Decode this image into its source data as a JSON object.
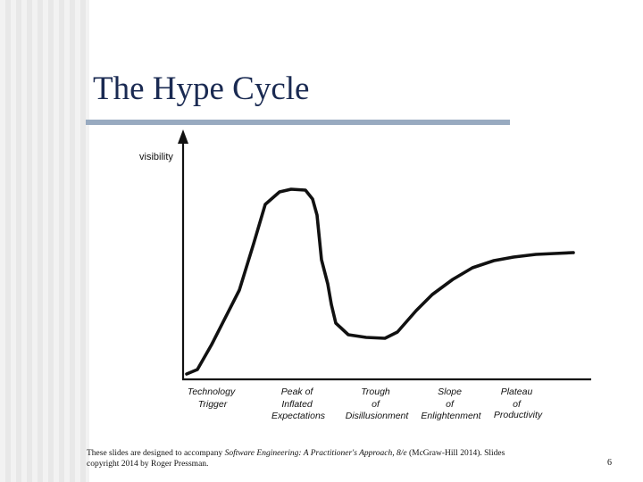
{
  "slide": {
    "title": "The Hype Cycle",
    "page_number": "6"
  },
  "footer": {
    "text_before": "These slides are designed to accompany ",
    "book_title": "Software Engineering: A Practitioner's Approach, 8/e",
    "text_after": " (McGraw-Hill 2014). Slides copyright 2014 by Roger Pressman."
  },
  "diagram": {
    "y_axis_label": "visibility",
    "phases": [
      {
        "id": "technology-trigger",
        "lines": [
          "Technology",
          "Trigger"
        ]
      },
      {
        "id": "peak-of-inflated-expectations",
        "lines": [
          "Peak of",
          "Inflated",
          "Expectations"
        ]
      },
      {
        "id": "trough-of-disillusionment",
        "lines": [
          "Trough",
          "of",
          "Disillusionment"
        ]
      },
      {
        "id": "slope-of-enlightenment",
        "lines": [
          "Slope",
          "of",
          "Enlightenment"
        ]
      },
      {
        "id": "plateau-of-productivity",
        "lines": [
          "Plateau",
          "of",
          "Productivity"
        ]
      }
    ]
  }
}
